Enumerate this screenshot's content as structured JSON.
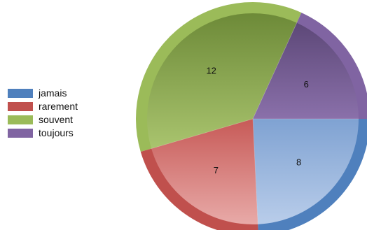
{
  "chart_data": {
    "type": "pie",
    "categories": [
      "jamais",
      "rarement",
      "souvent",
      "toujours"
    ],
    "values": [
      8,
      7,
      12,
      6
    ],
    "colors": [
      "#4f80bd",
      "#c0504d",
      "#9bbb59",
      "#8064a2"
    ],
    "title": "",
    "legend_position": "left",
    "start_angle": "right, clockwise"
  }
}
